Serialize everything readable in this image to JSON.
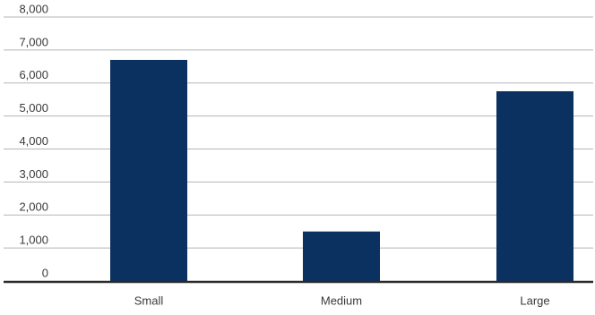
{
  "chart_data": {
    "type": "bar",
    "categories": [
      "Small",
      "Medium",
      "Large"
    ],
    "values": [
      6700,
      1500,
      5750
    ],
    "ylim": [
      0,
      8000
    ],
    "yticks": [
      0,
      1000,
      2000,
      3000,
      4000,
      5000,
      6000,
      7000,
      8000
    ],
    "ytick_labels": [
      "0",
      "1,000",
      "2,000",
      "3,000",
      "4,000",
      "5,000",
      "6,000",
      "7,000",
      "8,000"
    ],
    "title": "",
    "xlabel": "",
    "ylabel": "",
    "grid": true,
    "bar_color": "#0a3160",
    "grid_color": "#b5b5b5",
    "axis_color": "#2a2a2a"
  }
}
